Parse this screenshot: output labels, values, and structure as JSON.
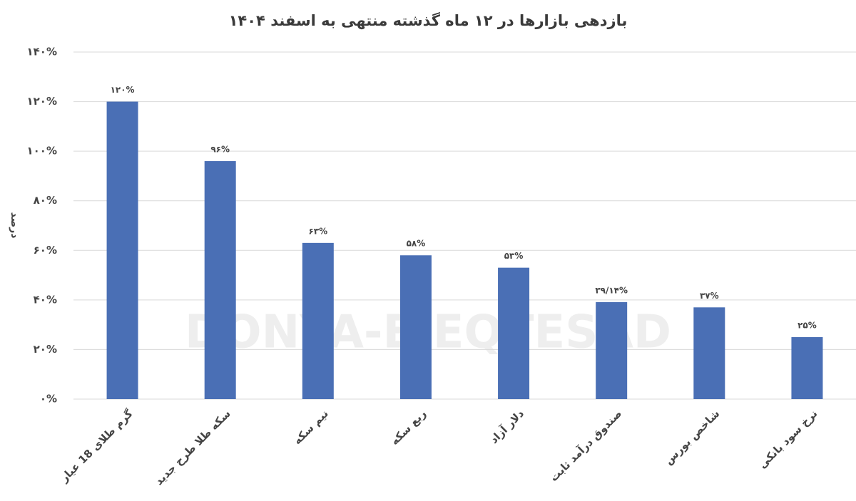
{
  "chart_data": {
    "type": "bar",
    "title": "بازدهی بازارها در ۱۲ ماه گذشته منتهی به اسفند ۱۴۰۴",
    "y_label": "درصد",
    "watermark": "DONYA-E-EQTESAD",
    "categories": [
      "گرم طلای 18 عیار",
      "سکه طلا طرح جدید",
      "نیم سکه",
      "ربع سکه",
      "دلار آزاد",
      "صندوق درآمد ثابت",
      "شاخص بورس",
      "نرخ سود بانکی"
    ],
    "values": [
      120,
      96,
      63,
      58,
      53,
      39.14,
      37,
      25
    ],
    "value_labels": [
      "۱۲۰%",
      "۹۶%",
      "۶۳%",
      "۵۸%",
      "۵۳%",
      "۳۹/۱۴%",
      "۳۷%",
      "۲۵%"
    ],
    "color": "#4a6fb5",
    "ylim": [
      0,
      140
    ],
    "yticks": [
      {
        "value": 0,
        "label": "۰%"
      },
      {
        "value": 20,
        "label": "۲۰%"
      },
      {
        "value": 40,
        "label": "۴۰%"
      },
      {
        "value": 60,
        "label": "۶۰%"
      },
      {
        "value": 80,
        "label": "۸۰%"
      },
      {
        "value": 100,
        "label": "۱۰۰%"
      },
      {
        "value": 120,
        "label": "۱۲۰%"
      },
      {
        "value": 140,
        "label": "۱۴۰%"
      }
    ],
    "grid": true
  }
}
